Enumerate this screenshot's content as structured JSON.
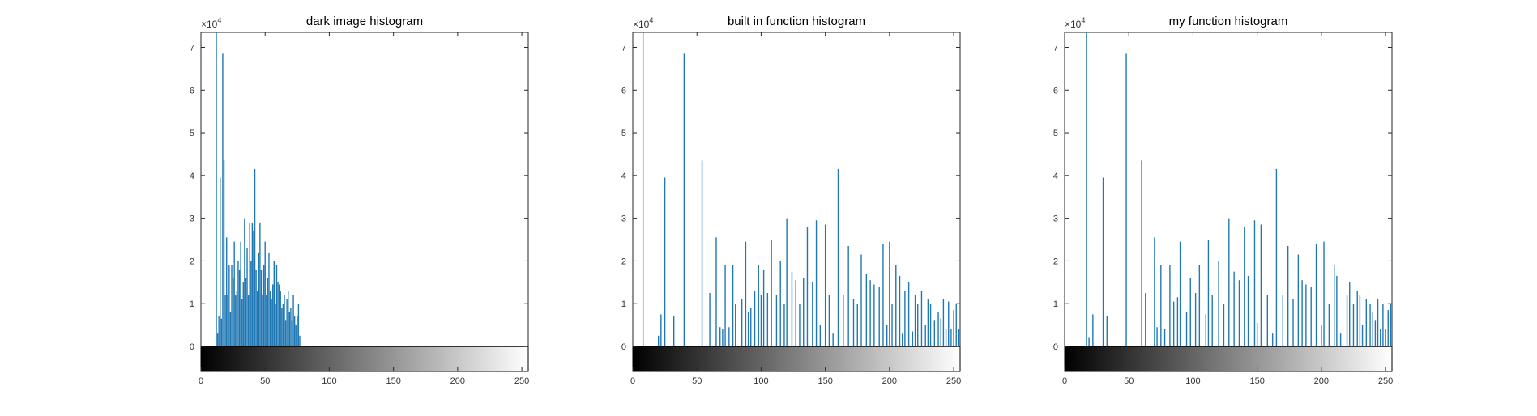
{
  "figure": {
    "colors": {
      "bar": "#1f77b4",
      "axes": "#262626",
      "background": "#ffffff"
    },
    "y_exponent": {
      "base": "×10",
      "power": "4"
    }
  },
  "chart_data": [
    {
      "type": "bar",
      "title": "dark image histogram",
      "xlabel": "",
      "ylabel": "",
      "xlim": [
        0,
        255
      ],
      "ylim": [
        0,
        73500
      ],
      "y_ticks": [
        0,
        1,
        2,
        3,
        4,
        5,
        6,
        7
      ],
      "x_ticks": [
        0,
        50,
        100,
        150,
        200,
        250
      ],
      "colorbar": "gray",
      "x": [
        12,
        13,
        14,
        15,
        16,
        17,
        18,
        19,
        20,
        21,
        22,
        23,
        24,
        25,
        26,
        27,
        28,
        29,
        30,
        31,
        32,
        33,
        34,
        35,
        36,
        37,
        38,
        39,
        40,
        41,
        42,
        43,
        44,
        45,
        46,
        47,
        48,
        49,
        50,
        51,
        52,
        53,
        54,
        55,
        56,
        57,
        58,
        59,
        60,
        61,
        62,
        63,
        64,
        65,
        66,
        67,
        68,
        69,
        70,
        71,
        72,
        73,
        74,
        75,
        76,
        77
      ],
      "values": [
        73500,
        3000,
        7000,
        39500,
        6500,
        68500,
        43500,
        12000,
        25500,
        12000,
        19000,
        8000,
        19000,
        16000,
        24500,
        12000,
        13000,
        20000,
        18000,
        24500,
        11000,
        15000,
        30000,
        16000,
        23000,
        12000,
        29000,
        20000,
        29000,
        27000,
        41500,
        18000,
        13000,
        22000,
        29000,
        18000,
        12000,
        19000,
        24500,
        12000,
        16000,
        22000,
        13000,
        11000,
        14500,
        20000,
        10000,
        19000,
        15000,
        14500,
        13000,
        9000,
        10000,
        12000,
        6000,
        11000,
        13000,
        8000,
        9000,
        6000,
        12000,
        7000,
        5000,
        7000,
        10000,
        2500
      ]
    },
    {
      "type": "bar",
      "title": "built in function histogram",
      "xlabel": "",
      "ylabel": "",
      "xlim": [
        0,
        255
      ],
      "ylim": [
        0,
        73500
      ],
      "y_ticks": [
        0,
        1,
        2,
        3,
        4,
        5,
        6,
        7
      ],
      "x_ticks": [
        0,
        50,
        100,
        150,
        200,
        250
      ],
      "colorbar": "gray",
      "x": [
        8,
        20,
        22,
        25,
        32,
        40,
        54,
        60,
        65,
        68,
        70,
        72,
        75,
        78,
        80,
        85,
        88,
        90,
        92,
        95,
        98,
        100,
        102,
        105,
        108,
        112,
        115,
        118,
        120,
        124,
        127,
        130,
        133,
        136,
        140,
        143,
        146,
        150,
        153,
        156,
        160,
        164,
        168,
        172,
        175,
        178,
        182,
        185,
        188,
        192,
        195,
        198,
        200,
        202,
        205,
        208,
        210,
        212,
        215,
        218,
        220,
        222,
        225,
        228,
        230,
        232,
        235,
        238,
        240,
        242,
        244,
        246,
        248,
        250,
        252,
        254
      ],
      "values": [
        73500,
        2500,
        7500,
        39500,
        7000,
        68500,
        43500,
        12500,
        25500,
        4500,
        4000,
        19000,
        4500,
        19000,
        10000,
        11000,
        24500,
        8000,
        9000,
        13000,
        19000,
        12000,
        18000,
        12500,
        25000,
        12000,
        20000,
        10000,
        30000,
        17500,
        15500,
        10000,
        16000,
        28000,
        15000,
        29500,
        5000,
        28500,
        12000,
        3000,
        41500,
        12000,
        23500,
        11000,
        10000,
        21500,
        17000,
        15500,
        14500,
        14000,
        24000,
        5000,
        24500,
        10000,
        19000,
        16500,
        3000,
        13000,
        15000,
        3500,
        12000,
        10000,
        13000,
        5000,
        11000,
        10000,
        6000,
        8000,
        6500,
        11000,
        4000,
        10500,
        4000,
        8500,
        10000,
        4000
      ]
    },
    {
      "type": "bar",
      "title": "my function histogram",
      "xlabel": "",
      "ylabel": "",
      "xlim": [
        0,
        255
      ],
      "ylim": [
        0,
        73500
      ],
      "y_ticks": [
        0,
        1,
        2,
        3,
        4,
        5,
        6,
        7
      ],
      "x_ticks": [
        0,
        50,
        100,
        150,
        200,
        250
      ],
      "colorbar": "gray",
      "x": [
        17,
        19,
        22,
        30,
        33,
        48,
        60,
        63,
        70,
        72,
        75,
        78,
        82,
        85,
        88,
        90,
        95,
        98,
        102,
        105,
        110,
        112,
        115,
        120,
        124,
        128,
        132,
        136,
        140,
        143,
        148,
        150,
        153,
        158,
        162,
        165,
        170,
        174,
        178,
        182,
        185,
        188,
        192,
        196,
        200,
        202,
        206,
        210,
        212,
        215,
        220,
        222,
        225,
        228,
        230,
        232,
        235,
        238,
        240,
        242,
        244,
        246,
        248,
        250,
        252,
        254
      ],
      "values": [
        73500,
        2000,
        7500,
        39500,
        7000,
        68500,
        43500,
        12500,
        25500,
        4500,
        19000,
        4000,
        19000,
        10500,
        11500,
        24500,
        8000,
        16000,
        12500,
        19000,
        7500,
        25000,
        12000,
        20000,
        10000,
        30000,
        17500,
        15500,
        28000,
        16500,
        29500,
        5500,
        28500,
        12000,
        3000,
        41500,
        12000,
        23500,
        11000,
        21500,
        15500,
        14500,
        14000,
        24000,
        5000,
        24500,
        10000,
        19000,
        16500,
        3000,
        12000,
        15000,
        10000,
        13000,
        12000,
        5000,
        11000,
        10000,
        8000,
        6000,
        11000,
        4000,
        10000,
        4000,
        8500,
        10000
      ]
    }
  ]
}
